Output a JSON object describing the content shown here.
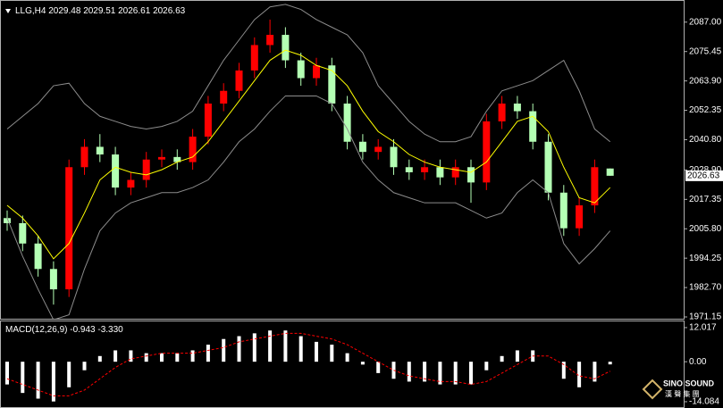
{
  "chart_data": [
    {
      "type": "candlestick",
      "title": "LLG,H4",
      "open": [
        2010,
        2008,
        2000,
        1990,
        1982,
        2030,
        2038,
        2035,
        2022,
        2025,
        2033,
        2034,
        2032,
        2042,
        2055,
        2060,
        2068,
        2078,
        2082,
        2072,
        2065,
        2070,
        2055,
        2040,
        2036,
        2038,
        2030,
        2028,
        2030,
        2026,
        2030,
        2024,
        2048,
        2055,
        2052,
        2040,
        2020,
        2006,
        2015,
        2029.48
      ],
      "high": [
        2013,
        2011,
        2003,
        1993,
        2033,
        2041,
        2043,
        2038,
        2028,
        2036,
        2037,
        2037,
        2045,
        2058,
        2063,
        2071,
        2081,
        2088,
        2085,
        2075,
        2073,
        2073,
        2058,
        2043,
        2041,
        2041,
        2033,
        2033,
        2033,
        2033,
        2033,
        2051,
        2058,
        2058,
        2055,
        2043,
        2023,
        2018,
        2033,
        2029.51
      ],
      "low": [
        2005,
        1997,
        1987,
        1976,
        1979,
        2027,
        2032,
        2019,
        2019,
        2022,
        2030,
        2029,
        2029,
        2039,
        2052,
        2057,
        2065,
        2075,
        2069,
        2062,
        2062,
        2052,
        2037,
        2033,
        2033,
        2027,
        2025,
        2025,
        2023,
        2023,
        2016,
        2021,
        2045,
        2049,
        2037,
        2017,
        2003,
        2003,
        2012,
        2026.61
      ],
      "close": [
        2008,
        2000,
        1990,
        1982,
        2030,
        2038,
        2035,
        2022,
        2025,
        2033,
        2034,
        2032,
        2042,
        2055,
        2060,
        2068,
        2078,
        2082,
        2072,
        2065,
        2070,
        2055,
        2040,
        2036,
        2038,
        2030,
        2028,
        2030,
        2026,
        2030,
        2024,
        2048,
        2055,
        2052,
        2040,
        2020,
        2006,
        2015,
        2030,
        2026.63
      ],
      "up_color": "#ff0000",
      "down_color": "#b4ffb4",
      "series": [
        {
          "color": "#ffff00",
          "values": [
            2015,
            2010,
            2003,
            1994,
            2000,
            2012,
            2025,
            2030,
            2028,
            2027,
            2029,
            2032,
            2034,
            2040,
            2048,
            2056,
            2064,
            2072,
            2076,
            2074,
            2070,
            2068,
            2062,
            2052,
            2044,
            2040,
            2035,
            2032,
            2030,
            2029,
            2028,
            2032,
            2040,
            2048,
            2050,
            2044,
            2030,
            2018,
            2016,
            2022
          ]
        },
        {
          "color": "#8c8c8c",
          "values": [
            2045,
            2050,
            2055,
            2062,
            2063,
            2055,
            2050,
            2048,
            2046,
            2045,
            2046,
            2048,
            2052,
            2062,
            2072,
            2080,
            2088,
            2093,
            2094,
            2092,
            2088,
            2085,
            2082,
            2075,
            2062,
            2055,
            2048,
            2043,
            2040,
            2040,
            2042,
            2052,
            2060,
            2062,
            2064,
            2068,
            2072,
            2060,
            2045,
            2040
          ]
        },
        {
          "color": "#8c8c8c",
          "values": [
            2010,
            1995,
            1982,
            1970,
            1972,
            1990,
            2005,
            2012,
            2016,
            2018,
            2020,
            2020,
            2022,
            2025,
            2032,
            2040,
            2045,
            2052,
            2058,
            2058,
            2058,
            2055,
            2045,
            2032,
            2025,
            2020,
            2018,
            2016,
            2016,
            2016,
            2013,
            2010,
            2012,
            2020,
            2025,
            2020,
            2000,
            1992,
            1998,
            2005
          ]
        }
      ],
      "ylim": [
        1970.45,
        2095.7
      ],
      "yticks": [
        {
          "value": 2087,
          "label": "2087.00"
        },
        {
          "value": 2075.45,
          "label": "2075.45"
        },
        {
          "value": 2063.9,
          "label": "2063.90"
        },
        {
          "value": 2052.35,
          "label": "2052.35"
        },
        {
          "value": 2040.8,
          "label": "2040.80"
        },
        {
          "value": 2028.9,
          "label": "2028.90"
        },
        {
          "value": 2017.35,
          "label": "2017.35"
        },
        {
          "value": 2005.8,
          "label": "2005.80"
        },
        {
          "value": 1994.25,
          "label": "1994.25"
        },
        {
          "value": 1982.7,
          "label": "1982.70"
        },
        {
          "value": 1971.15,
          "label": "1971.15"
        }
      ]
    },
    {
      "type": "macd",
      "title": "MACD(12,26,9)",
      "header_values": [
        -0.943,
        {
          "value": -3.33,
          "label": "-3.330"
        }
      ],
      "series": [
        {
          "color": "#ffffff",
          "values": [
            -8,
            -11,
            -13,
            -14,
            -9,
            -3,
            2,
            4,
            4,
            3,
            3,
            3,
            4,
            6,
            8,
            9,
            10,
            11,
            11,
            9,
            7,
            6,
            3,
            -1,
            -4,
            -6,
            -7,
            -7,
            -8,
            -8,
            -8,
            -3,
            2,
            4,
            4,
            0,
            -6,
            -9,
            -7,
            -0.943
          ]
        },
        {
          "color": "#ff0000",
          "values": [
            -6,
            -8,
            -10,
            -12,
            -12,
            -10,
            -6,
            -2,
            1,
            2,
            3,
            3,
            3,
            4,
            5,
            7,
            8,
            9,
            10,
            10,
            9,
            8,
            6,
            3,
            0,
            -3,
            -5,
            -6,
            -7,
            -7,
            -8,
            -7,
            -4,
            -1,
            2,
            2,
            -1,
            -5,
            -6,
            -3.33
          ]
        }
      ],
      "ylim": [
        -16.3,
        14.2
      ],
      "yticks": [
        12.017,
        {
          "value": 0,
          "label": "0.00"
        },
        -14.084
      ]
    }
  ],
  "watermark": {
    "name": "SINO SOUND",
    "subtitle": "漢 聲 集 團"
  }
}
